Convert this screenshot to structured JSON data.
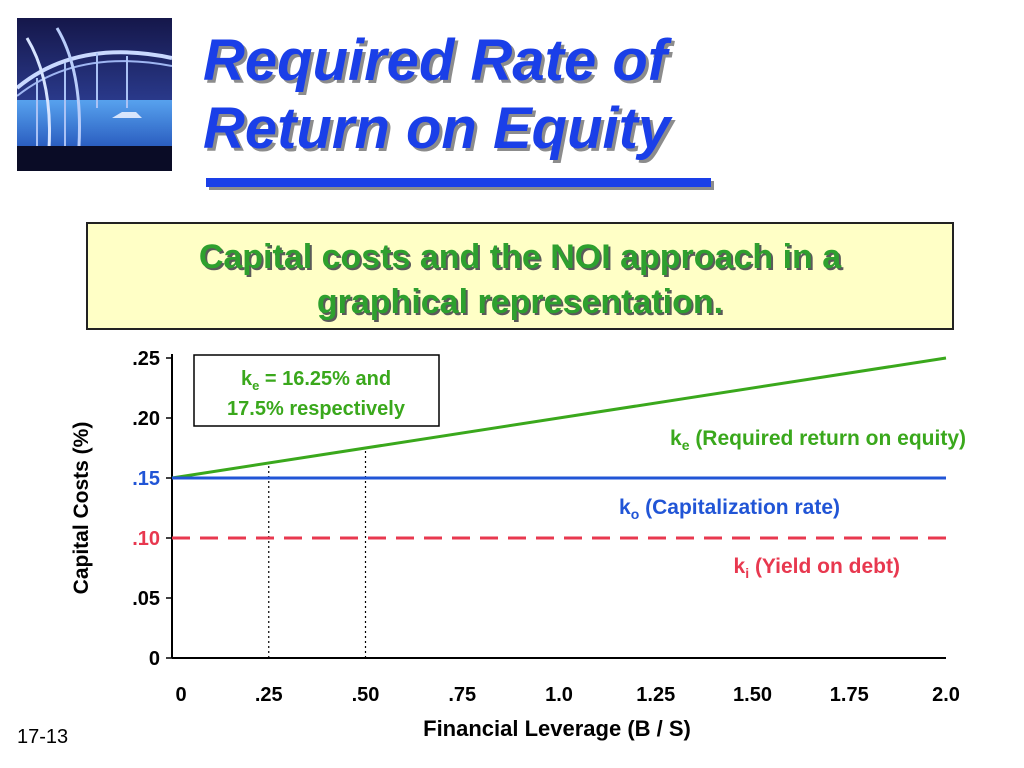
{
  "slide": {
    "title_line_1": "Required Rate of",
    "title_line_2": "Return on Equity",
    "subtitle_line_1": "Capital costs and the NOI approach in a",
    "subtitle_line_2": "graphical representation.",
    "slide_number": "17-13",
    "header_image": "bridge-photo"
  },
  "colors": {
    "title": "#1a3fe8",
    "subtitle": "#2ea02e",
    "subtitle_box": "#ffffc6",
    "ke_line": "#3aa81c",
    "ko_line": "#2155d6",
    "ki_line": "#e8384f"
  },
  "chart_data": {
    "type": "line",
    "xlabel": "Financial Leverage (B / S)",
    "ylabel": "Capital Costs (%)",
    "xlim": [
      0,
      2.0
    ],
    "ylim": [
      0,
      0.25
    ],
    "x_ticks": [
      {
        "value": 0,
        "label": "0"
      },
      {
        "value": 0.25,
        "label": ".25"
      },
      {
        "value": 0.5,
        "label": ".50"
      },
      {
        "value": 0.75,
        "label": ".75"
      },
      {
        "value": 1.0,
        "label": "1.0"
      },
      {
        "value": 1.25,
        "label": "1.25"
      },
      {
        "value": 1.5,
        "label": "1.50"
      },
      {
        "value": 1.75,
        "label": "1.75"
      },
      {
        "value": 2.0,
        "label": "2.0"
      }
    ],
    "y_ticks": [
      {
        "value": 0,
        "label": "0",
        "color": "#000000"
      },
      {
        "value": 0.05,
        "label": ".05",
        "color": "#000000"
      },
      {
        "value": 0.1,
        "label": ".10",
        "color": "#e8384f"
      },
      {
        "value": 0.15,
        "label": ".15",
        "color": "#2155d6"
      },
      {
        "value": 0.2,
        "label": ".20",
        "color": "#000000"
      },
      {
        "value": 0.25,
        "label": ".25",
        "color": "#000000"
      }
    ],
    "series": [
      {
        "key": "ke",
        "symbol": "k",
        "sub": "e",
        "name": "(Required return on equity)",
        "x": [
          0,
          2.0
        ],
        "y": [
          0.15,
          0.25
        ],
        "color": "#3aa81c",
        "dash": false
      },
      {
        "key": "ko",
        "symbol": "k",
        "sub": "o",
        "name": "(Capitalization rate)",
        "x": [
          0,
          2.0
        ],
        "y": [
          0.15,
          0.15
        ],
        "color": "#2155d6",
        "dash": false
      },
      {
        "key": "ki",
        "symbol": "k",
        "sub": "i",
        "name": "(Yield on debt)",
        "x": [
          0,
          2.0
        ],
        "y": [
          0.1,
          0.1
        ],
        "color": "#e8384f",
        "dash": true
      }
    ],
    "reference_lines": [
      {
        "x": 0.25,
        "y": 0.1625
      },
      {
        "x": 0.5,
        "y": 0.175
      }
    ],
    "annotation": {
      "symbol": "k",
      "sub": "e",
      "text_rest": " = 16.25% and",
      "line_2": "17.5% respectively"
    },
    "grid": false,
    "legend": "inline labels next to lines"
  }
}
